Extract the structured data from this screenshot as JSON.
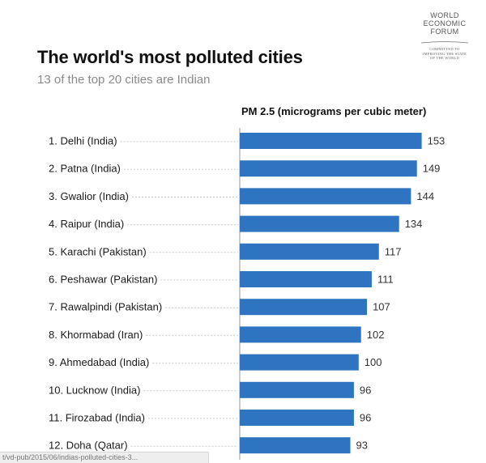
{
  "logo": {
    "name_lines": [
      "WORLD",
      "ECONOMIC",
      "FORUM"
    ],
    "tagline_lines": [
      "COMMITTED TO",
      "IMPROVING THE STATE",
      "OF THE WORLD"
    ]
  },
  "status_url": "t/vd-pub/2015/06/indias-polluted-cities-3...",
  "chart_data": {
    "type": "bar",
    "orientation": "horizontal",
    "title": "The world's most polluted cities",
    "subtitle": "13 of the top 20 cities are Indian",
    "metric_label": "PM 2.5 (micrograms per cubic meter)",
    "categories": [
      "1. Delhi (India)",
      "2. Patna (India)",
      "3. Gwalior (India)",
      "4. Raipur (India)",
      "5. Karachi (Pakistan)",
      "6. Peshawar (Pakistan)",
      "7. Rawalpindi (Pakistan)",
      "8. Khormabad (Iran)",
      "9. Ahmedabad (India)",
      "10. Lucknow (India)",
      "11. Firozabad (India)",
      "12. Doha (Qatar)"
    ],
    "values": [
      153,
      149,
      144,
      134,
      117,
      111,
      107,
      102,
      100,
      96,
      96,
      93
    ],
    "bar_color": "#2f74c0",
    "leader_color": "#c9c9c9",
    "axis_color": "#9a9a9a",
    "grid": false,
    "legend": "none"
  }
}
